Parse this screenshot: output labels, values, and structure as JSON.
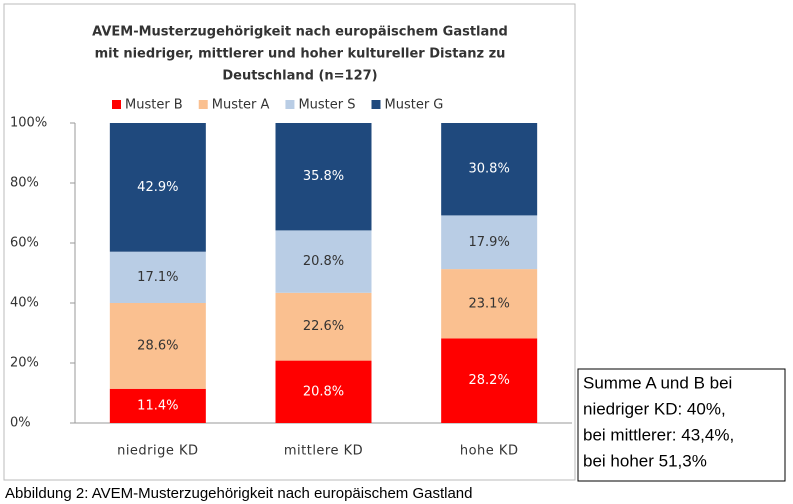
{
  "chart_data": {
    "type": "stacked_bar",
    "title_lines": [
      "AVEM-Musterzugehörigkeit nach europäischem Gastland",
      "mit niedriger, mittlerer und hoher kultureller Distanz zu",
      "Deutschland (n=127)"
    ],
    "categories": [
      "niedrige KD",
      "mittlere KD",
      "hohe KD"
    ],
    "series": [
      {
        "name": "Muster B",
        "color": "#ff0000",
        "label_color": "#ffffff",
        "values": [
          11.4,
          20.8,
          28.2
        ],
        "value_labels": [
          "11.4%",
          "20.8%",
          "28.2%"
        ]
      },
      {
        "name": "Muster A",
        "color": "#fac090",
        "label_color": "#333333",
        "values": [
          28.6,
          22.6,
          23.1
        ],
        "value_labels": [
          "28.6%",
          "22.6%",
          "23.1%"
        ]
      },
      {
        "name": "Muster S",
        "color": "#b9cde5",
        "label_color": "#333333",
        "values": [
          17.1,
          20.8,
          17.9
        ],
        "value_labels": [
          "17.1%",
          "20.8%",
          "17.9%"
        ]
      },
      {
        "name": "Muster G",
        "color": "#1f497d",
        "label_color": "#ffffff",
        "values": [
          42.9,
          35.8,
          30.8
        ],
        "value_labels": [
          "42.9%",
          "35.8%",
          "30.8%"
        ]
      }
    ],
    "ylim": [
      0,
      100
    ],
    "yticks": [
      {
        "value": 0,
        "label": "0%"
      },
      {
        "value": 20,
        "label": "20%"
      },
      {
        "value": 40,
        "label": "40%"
      },
      {
        "value": 60,
        "label": "60%"
      },
      {
        "value": 80,
        "label": "80%"
      },
      {
        "value": 100,
        "label": "100%"
      }
    ],
    "annotation_lines": [
      "Summe A und B bei",
      "niedriger KD: 40%,",
      "bei mittlerer: 43,4%,",
      "bei hoher 51,3%"
    ],
    "caption": "Abbildung 2: AVEM-Musterzugehörigkeit nach europäischem Gastland"
  }
}
